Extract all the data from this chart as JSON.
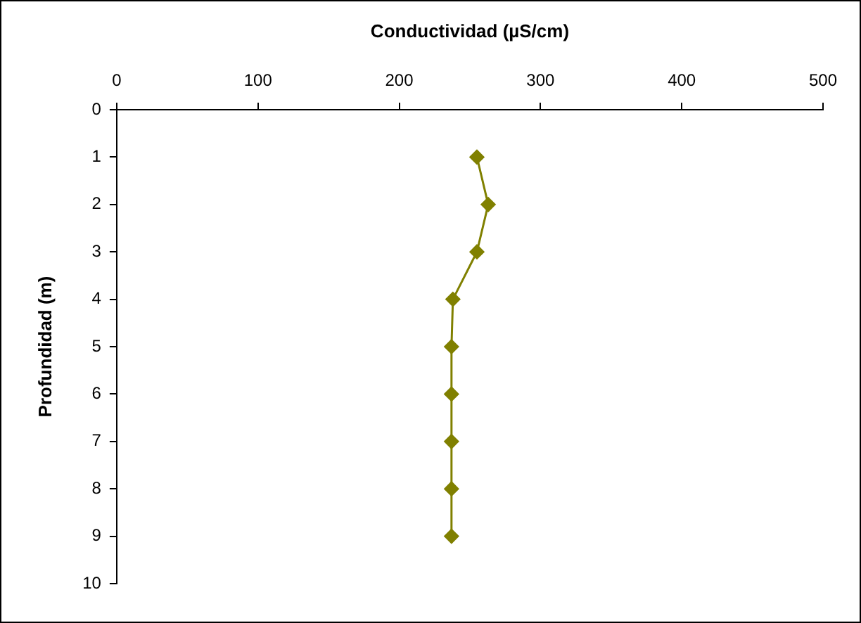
{
  "chart_data": {
    "type": "line",
    "xlabel": "Conductividad (µS/cm)",
    "ylabel": "Profundidad (m)",
    "x": [
      255,
      263,
      255,
      238,
      237,
      237,
      237,
      237,
      237
    ],
    "series": [
      {
        "color": "#808000",
        "values": [
          1,
          2,
          3,
          4,
          5,
          6,
          7,
          8,
          9
        ]
      }
    ],
    "xlim": [
      0,
      500
    ],
    "xticks": [
      0,
      100,
      200,
      300,
      400,
      500
    ],
    "ylim": [
      10,
      0
    ],
    "yticks": [
      0,
      1,
      2,
      3,
      4,
      5,
      6,
      7,
      8,
      9,
      10
    ],
    "grid": false,
    "legend": false,
    "marker": "diamond",
    "line_style": "solid"
  }
}
